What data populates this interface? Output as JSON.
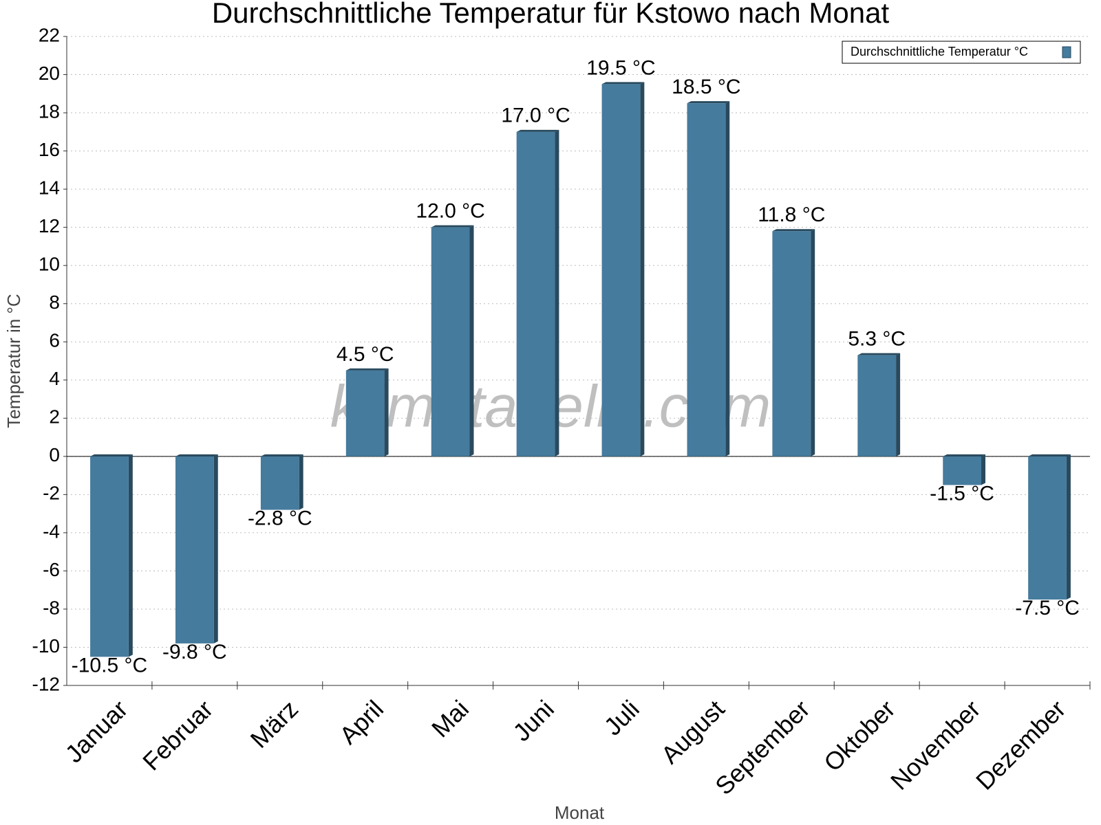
{
  "chart_data": {
    "type": "bar",
    "title": "Durchschnittliche Temperatur für Kstowo nach Monat",
    "watermark": "klimatabelle.com",
    "x_label": "Monat",
    "y_label": "Temperatur in °C",
    "legend": "upper right",
    "categories": [
      "Januar",
      "Februar",
      "März",
      "April",
      "Mai",
      "Juni",
      "Juli",
      "August",
      "September",
      "Oktober",
      "November",
      "Dezember"
    ],
    "series": [
      {
        "name": "Durchschnittliche Temperatur °C",
        "color": "#457b9d",
        "values": [
          -10.5,
          -9.8,
          -2.8,
          4.5,
          12.0,
          17.0,
          19.5,
          18.5,
          11.8,
          5.3,
          -1.5,
          -7.5
        ],
        "value_labels": [
          "-10.5 °C",
          "-9.8 °C",
          "-2.8 °C",
          "4.5 °C",
          "12.0 °C",
          "17.0 °C",
          "19.5 °C",
          "18.5 °C",
          "11.8 °C",
          "5.3 °C",
          "-1.5 °C",
          "-7.5 °C"
        ]
      }
    ],
    "ylim": [
      -12,
      22
    ],
    "yticks": [
      -12,
      -10,
      -8,
      -6,
      -4,
      -2,
      0,
      2,
      4,
      6,
      8,
      10,
      12,
      14,
      16,
      18,
      20,
      22
    ],
    "grid": true
  }
}
